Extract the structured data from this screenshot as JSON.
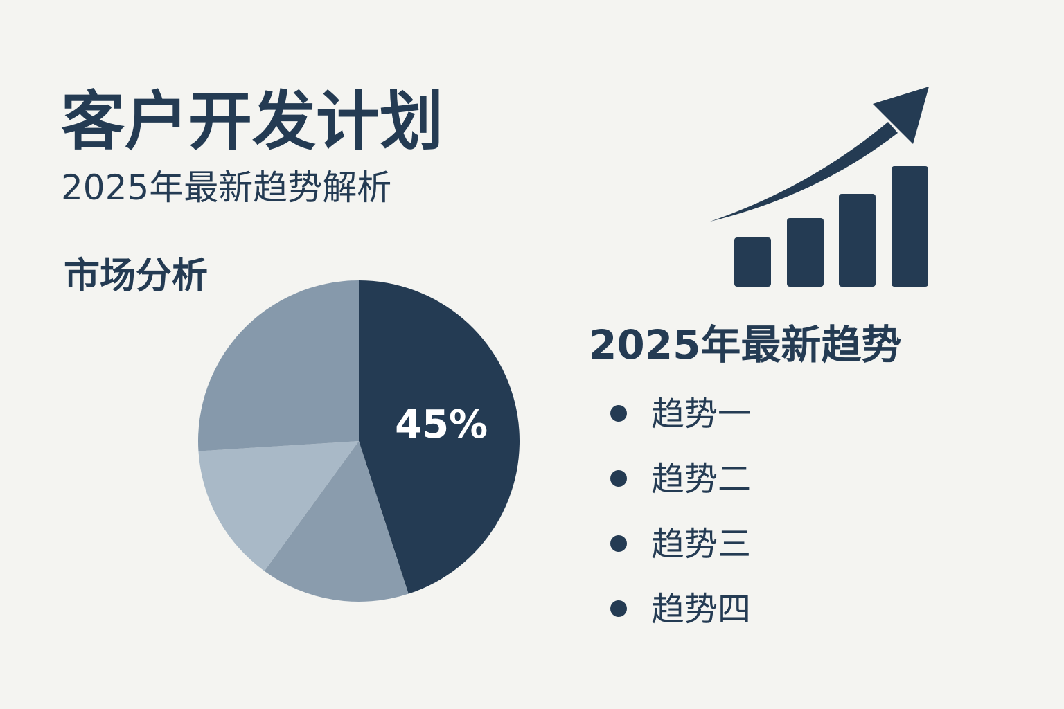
{
  "header": {
    "title": "客户开发计划",
    "subtitle": "2025年最新趋势解析"
  },
  "chart_data": {
    "type": "pie",
    "title": "市场分析",
    "categories": [
      null,
      null,
      null,
      null
    ],
    "values": [
      45,
      15,
      14,
      26
    ],
    "value_labels": [
      "45%",
      null,
      null,
      null
    ],
    "colors": [
      "#243b53",
      "#8a9cad",
      "#a9b9c7",
      "#8699ab"
    ]
  },
  "trends": {
    "title": "2025年最新趋势",
    "items": [
      "趋势一",
      "趋势二",
      "趋势三",
      "趋势四"
    ]
  }
}
